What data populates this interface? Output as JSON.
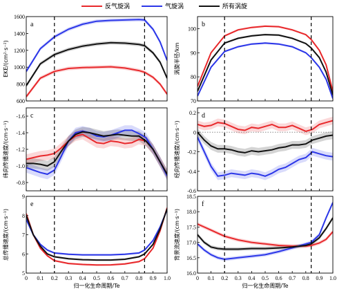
{
  "legend": [
    {
      "name": "反气旋涡",
      "color": "#e8282b"
    },
    {
      "name": "气旋涡",
      "color": "#2b36e8"
    },
    {
      "name": "所有涡旋",
      "color": "#111111"
    }
  ],
  "chart_data": [
    {
      "type": "line",
      "panel": "a",
      "ylabel": "EKE/(cm²·s⁻²)",
      "xlabel": "",
      "xlim": [
        0,
        1
      ],
      "ylim": [
        600,
        1600
      ],
      "yticks": [
        "600",
        "800",
        "1000",
        "1200",
        "1400",
        "1600"
      ],
      "xticks": [
        "0",
        "0.1",
        "0.2",
        "0.3",
        "0.4",
        "0.5",
        "0.6",
        "0.7",
        "0.8",
        "0.9",
        "1.0"
      ],
      "show_xticklabels": false,
      "yreverse": false,
      "vlines": [
        0.2,
        0.84
      ],
      "hline": null,
      "x": [
        0,
        0.1,
        0.2,
        0.3,
        0.4,
        0.5,
        0.6,
        0.7,
        0.8,
        0.84,
        0.9,
        0.95,
        1.0
      ],
      "band": 22,
      "series": [
        {
          "name": "反气旋涡",
          "color": "#e8282b",
          "values": [
            650,
            870,
            950,
            985,
            995,
            1000,
            1005,
            990,
            960,
            940,
            880,
            800,
            680
          ]
        },
        {
          "name": "气旋涡",
          "color": "#2b36e8",
          "values": [
            950,
            1220,
            1360,
            1450,
            1510,
            1545,
            1555,
            1560,
            1565,
            1560,
            1450,
            1300,
            1080
          ]
        },
        {
          "name": "所有涡旋",
          "color": "#111111",
          "values": [
            780,
            1040,
            1150,
            1210,
            1250,
            1275,
            1290,
            1285,
            1270,
            1255,
            1170,
            1060,
            870
          ]
        }
      ]
    },
    {
      "type": "line",
      "panel": "b",
      "ylabel": "涡旋半径/km",
      "xlabel": "",
      "xlim": [
        0,
        1
      ],
      "ylim": [
        70,
        105
      ],
      "yticks": [
        "70",
        "80",
        "90",
        "100"
      ],
      "xticks": [
        "0",
        "0.1",
        "0.2",
        "0.3",
        "0.4",
        "0.5",
        "0.6",
        "0.7",
        "0.8",
        "0.9",
        "1.0"
      ],
      "show_xticklabels": false,
      "yreverse": false,
      "vlines": [
        0.2,
        0.84
      ],
      "hline": null,
      "x": [
        0,
        0.1,
        0.2,
        0.3,
        0.4,
        0.5,
        0.6,
        0.7,
        0.8,
        0.84,
        0.9,
        0.95,
        1.0
      ],
      "band": 0.4,
      "series": [
        {
          "name": "反气旋涡",
          "color": "#e8282b",
          "values": [
            76,
            90,
            97,
            99.5,
            100.5,
            101,
            100.8,
            99.5,
            97.5,
            95.5,
            91,
            85,
            74
          ]
        },
        {
          "name": "气旋涡",
          "color": "#2b36e8",
          "values": [
            72,
            84,
            90.5,
            92.5,
            93.6,
            94,
            93.6,
            92.5,
            90,
            88,
            84,
            79,
            71
          ]
        },
        {
          "name": "所有涡旋",
          "color": "#111111",
          "values": [
            74,
            87,
            94,
            96,
            97,
            97.5,
            97.3,
            96,
            93.8,
            92,
            88,
            82,
            72.5
          ]
        }
      ]
    },
    {
      "type": "line",
      "panel": "c",
      "ylabel": "纬向传播速度/(cm·s⁻¹)",
      "xlabel": "",
      "xlim": [
        0,
        1
      ],
      "ylim": [
        -0.7,
        -1.7
      ],
      "yticks": [
        "-0.8",
        "-1.0",
        "-1.2",
        "-1.4",
        "-1.6"
      ],
      "xticks": [
        "0",
        "0.1",
        "0.2",
        "0.3",
        "0.4",
        "0.5",
        "0.6",
        "0.7",
        "0.8",
        "0.9",
        "1.0"
      ],
      "show_xticklabels": false,
      "yreverse": true,
      "vlines": [
        0.2,
        0.84
      ],
      "hline": null,
      "x": [
        0,
        0.05,
        0.1,
        0.15,
        0.2,
        0.25,
        0.3,
        0.35,
        0.4,
        0.45,
        0.5,
        0.55,
        0.6,
        0.65,
        0.7,
        0.75,
        0.8,
        0.85,
        0.9,
        0.95,
        1.0
      ],
      "band": 0.06,
      "series": [
        {
          "name": "反气旋涡",
          "color": "#e8282b",
          "values": [
            -1.08,
            -1.1,
            -1.12,
            -1.13,
            -1.15,
            -1.22,
            -1.3,
            -1.36,
            -1.38,
            -1.33,
            -1.28,
            -1.27,
            -1.3,
            -1.29,
            -1.27,
            -1.28,
            -1.32,
            -1.3,
            -1.2,
            -1.05,
            -0.9
          ]
        },
        {
          "name": "气旋涡",
          "color": "#2b36e8",
          "values": [
            -0.98,
            -0.95,
            -0.92,
            -0.9,
            -0.95,
            -1.12,
            -1.3,
            -1.4,
            -1.42,
            -1.4,
            -1.36,
            -1.35,
            -1.37,
            -1.4,
            -1.43,
            -1.43,
            -1.39,
            -1.34,
            -1.2,
            -1.05,
            -0.88
          ]
        },
        {
          "name": "所有涡旋",
          "color": "#111111",
          "values": [
            -1.03,
            -1.03,
            -1.02,
            -1.0,
            -1.05,
            -1.18,
            -1.3,
            -1.38,
            -1.41,
            -1.4,
            -1.38,
            -1.36,
            -1.37,
            -1.38,
            -1.37,
            -1.36,
            -1.36,
            -1.3,
            -1.2,
            -1.05,
            -0.9
          ]
        }
      ]
    },
    {
      "type": "line",
      "panel": "d",
      "ylabel": "经向传播速度/(cm·s⁻¹)",
      "xlabel": "",
      "xlim": [
        0,
        1
      ],
      "ylim": [
        -0.6,
        0.25
      ],
      "yticks": [
        "-0.6",
        "-0.4",
        "-0.2",
        "0",
        "0.2"
      ],
      "xticks": [
        "0",
        "0.1",
        "0.2",
        "0.3",
        "0.4",
        "0.5",
        "0.6",
        "0.7",
        "0.8",
        "0.9",
        "1.0"
      ],
      "show_xticklabels": false,
      "yreverse": false,
      "vlines": [
        0.2,
        0.84
      ],
      "hline": 0,
      "x": [
        0,
        0.05,
        0.1,
        0.15,
        0.2,
        0.25,
        0.3,
        0.35,
        0.4,
        0.45,
        0.5,
        0.55,
        0.6,
        0.65,
        0.7,
        0.75,
        0.8,
        0.85,
        0.9,
        0.95,
        1.0
      ],
      "band": 0.04,
      "series": [
        {
          "name": "反气旋涡",
          "color": "#e8282b",
          "values": [
            0.08,
            0.06,
            0.07,
            0.1,
            0.09,
            0.06,
            0.03,
            0.02,
            0.05,
            0.04,
            0.06,
            0.08,
            0.05,
            0.05,
            0.07,
            0.04,
            0.01,
            0.03,
            0.08,
            0.1,
            0.12
          ]
        },
        {
          "name": "气旋涡",
          "color": "#2b36e8",
          "values": [
            -0.05,
            -0.2,
            -0.35,
            -0.45,
            -0.44,
            -0.42,
            -0.43,
            -0.44,
            -0.42,
            -0.43,
            -0.45,
            -0.42,
            -0.38,
            -0.36,
            -0.32,
            -0.28,
            -0.26,
            -0.2,
            -0.22,
            -0.24,
            -0.25
          ]
        },
        {
          "name": "所有涡旋",
          "color": "#111111",
          "values": [
            0.0,
            -0.08,
            -0.14,
            -0.17,
            -0.17,
            -0.18,
            -0.2,
            -0.21,
            -0.19,
            -0.2,
            -0.19,
            -0.18,
            -0.16,
            -0.15,
            -0.13,
            -0.13,
            -0.12,
            -0.08,
            -0.06,
            -0.04,
            -0.03
          ]
        }
      ]
    },
    {
      "type": "line",
      "panel": "e",
      "ylabel": "总传播速度/(cm·s⁻¹)",
      "xlabel": "归一化生命周期/Te",
      "xlim": [
        0,
        1
      ],
      "ylim": [
        5,
        9
      ],
      "yticks": [
        "5",
        "6",
        "7",
        "8",
        "9"
      ],
      "xticks": [
        "0",
        "0.1",
        "0.2",
        "0.3",
        "0.4",
        "0.5",
        "0.6",
        "0.7",
        "0.8",
        "0.9",
        "1.0"
      ],
      "show_xticklabels": true,
      "yreverse": false,
      "vlines": [
        0.2,
        0.84
      ],
      "hline": null,
      "x": [
        0,
        0.05,
        0.1,
        0.15,
        0.2,
        0.3,
        0.4,
        0.5,
        0.6,
        0.7,
        0.8,
        0.84,
        0.9,
        0.95,
        1.0
      ],
      "band": 0.05,
      "series": [
        {
          "name": "反气旋涡",
          "color": "#e8282b",
          "values": [
            8.1,
            7.0,
            6.3,
            5.9,
            5.65,
            5.5,
            5.45,
            5.42,
            5.43,
            5.48,
            5.6,
            5.75,
            6.3,
            7.2,
            8.4
          ]
        },
        {
          "name": "气旋涡",
          "color": "#2b36e8",
          "values": [
            7.8,
            7.0,
            6.5,
            6.2,
            6.05,
            5.98,
            5.95,
            5.95,
            5.95,
            5.98,
            6.05,
            6.2,
            6.7,
            7.4,
            8.3
          ]
        },
        {
          "name": "所有涡旋",
          "color": "#111111",
          "values": [
            8.0,
            7.0,
            6.4,
            6.0,
            5.85,
            5.75,
            5.7,
            5.68,
            5.68,
            5.72,
            5.85,
            6.0,
            6.5,
            7.3,
            8.35
          ]
        }
      ]
    },
    {
      "type": "line",
      "panel": "f",
      "ylabel": "背景流速度/(cm·s⁻¹)",
      "xlabel": "归一化生命周期/Te",
      "xlim": [
        0,
        1
      ],
      "ylim": [
        16,
        18.5
      ],
      "yticks": [
        "16.0",
        "16.5",
        "17.0",
        "17.5",
        "18.0",
        "18.5"
      ],
      "xticks": [
        "0",
        "0.1",
        "0.2",
        "0.3",
        "0.4",
        "0.5",
        "0.6",
        "0.7",
        "0.8",
        "0.9",
        "1.0"
      ],
      "show_xticklabels": true,
      "yreverse": false,
      "vlines": [
        0.2,
        0.84
      ],
      "hline": null,
      "x": [
        0,
        0.05,
        0.1,
        0.15,
        0.2,
        0.3,
        0.4,
        0.5,
        0.6,
        0.7,
        0.8,
        0.84,
        0.9,
        0.95,
        1.0
      ],
      "band": 0.06,
      "series": [
        {
          "name": "反气旋涡",
          "color": "#e8282b",
          "values": [
            17.6,
            17.5,
            17.4,
            17.3,
            17.2,
            17.08,
            17.0,
            16.95,
            16.9,
            16.88,
            16.88,
            16.9,
            16.98,
            17.1,
            17.35
          ]
        },
        {
          "name": "气旋涡",
          "color": "#2b36e8",
          "values": [
            16.95,
            16.75,
            16.6,
            16.5,
            16.45,
            16.5,
            16.55,
            16.6,
            16.7,
            16.82,
            16.95,
            17.0,
            17.25,
            17.8,
            18.3
          ]
        },
        {
          "name": "所有涡旋",
          "color": "#111111",
          "values": [
            17.25,
            17.0,
            16.85,
            16.8,
            16.78,
            16.78,
            16.8,
            16.8,
            16.82,
            16.85,
            16.9,
            16.95,
            17.15,
            17.45,
            17.8
          ]
        }
      ]
    }
  ]
}
